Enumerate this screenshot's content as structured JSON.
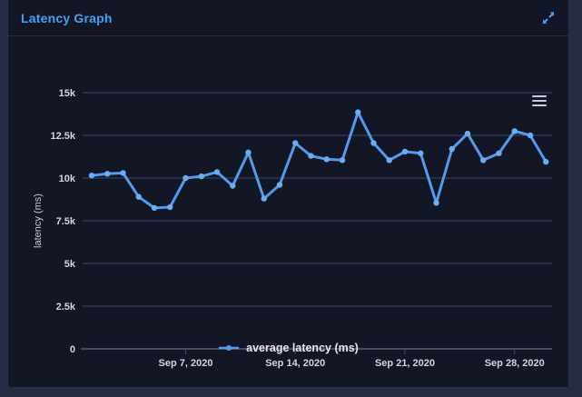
{
  "panel": {
    "title": "Latency Graph"
  },
  "legend": {
    "label": "average latency (ms)"
  },
  "icons": {
    "expand": "diagonal-expand-arrows",
    "chart_menu": "hamburger-lines",
    "legend_symbol": "line-with-dot"
  },
  "colors": {
    "page_bg": "#252b43",
    "panel_bg": "#131625",
    "panel_border": "#2a3047",
    "accent_blue": "#42a0f5",
    "series_line": "#549aec",
    "series_dot": "#6badf2",
    "gridline": "#3c4670",
    "axis_line": "#444b66",
    "tick_text": "#d2d6e0",
    "legend_text": "#e6e8ef",
    "menu_icon": "#c9cdd8"
  },
  "chart_data": {
    "type": "line",
    "title": "Latency Graph",
    "xlabel": "",
    "ylabel": "latency (ms)",
    "ylim": [
      0,
      15000
    ],
    "grid": true,
    "legend_position": "bottom",
    "ytick_values": [
      0,
      2500,
      5000,
      7500,
      10000,
      12500,
      15000
    ],
    "ytick_labels": [
      "0",
      "2.5k",
      "5k",
      "7.5k",
      "10k",
      "12.5k",
      "15k"
    ],
    "xticks": [
      {
        "day": 7,
        "label": "Sep 7, 2020"
      },
      {
        "day": 14,
        "label": "Sep 14, 2020"
      },
      {
        "day": 21,
        "label": "Sep 21, 2020"
      },
      {
        "day": 28,
        "label": "Sep 28, 2020"
      }
    ],
    "x_unit": "day of September 2020",
    "x_days": [
      1,
      2,
      3,
      4,
      5,
      6,
      7,
      8,
      9,
      10,
      11,
      12,
      13,
      14,
      15,
      16,
      17,
      18,
      19,
      20,
      21,
      22,
      23,
      24,
      25,
      26,
      27,
      28,
      29,
      30
    ],
    "series": [
      {
        "name": "average latency (ms)",
        "color": "#549aec",
        "values": [
          10150,
          10250,
          10300,
          8900,
          8250,
          8300,
          10000,
          10100,
          10350,
          9550,
          11500,
          8800,
          9600,
          12050,
          11300,
          11100,
          11050,
          13850,
          12050,
          11050,
          11550,
          11450,
          8550,
          11700,
          12600,
          11050,
          11450,
          12750,
          12500,
          10950
        ]
      }
    ]
  }
}
